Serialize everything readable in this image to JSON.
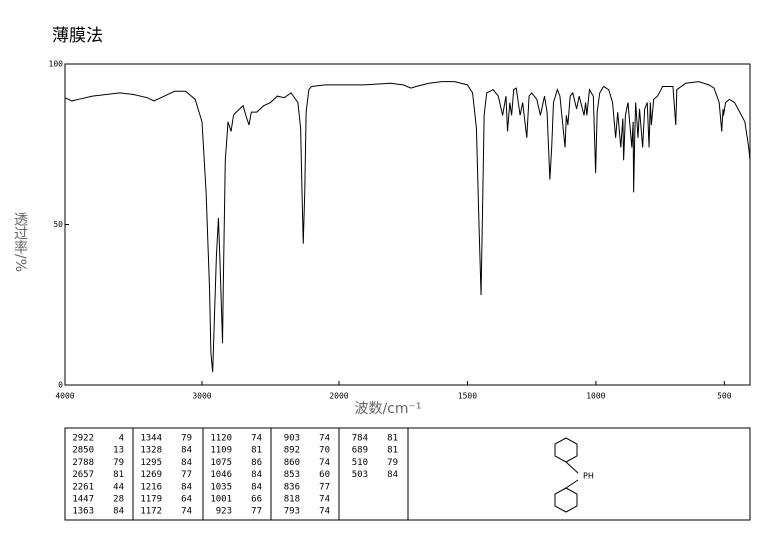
{
  "chart_data": {
    "type": "line",
    "title": "薄膜法",
    "x_label": "波数/cm⁻¹",
    "y_label": "透过率/%",
    "xlim": [
      4000,
      400
    ],
    "x_scale_break": 2000,
    "xticks": [
      4000,
      3000,
      2000,
      1500,
      1000,
      500
    ],
    "ylim": [
      0,
      100
    ],
    "yticks": [
      0,
      50,
      100
    ],
    "color": "#000000",
    "x": [
      4000,
      3950,
      3900,
      3800,
      3700,
      3600,
      3500,
      3400,
      3350,
      3300,
      3200,
      3120,
      3050,
      3000,
      2970,
      2945,
      2935,
      2922,
      2910,
      2895,
      2880,
      2870,
      2855,
      2850,
      2845,
      2830,
      2810,
      2788,
      2770,
      2750,
      2700,
      2680,
      2657,
      2640,
      2600,
      2550,
      2500,
      2450,
      2400,
      2350,
      2300,
      2280,
      2270,
      2261,
      2250,
      2240,
      2220,
      2200,
      2100,
      2000,
      1900,
      1800,
      1750,
      1720,
      1700,
      1650,
      1600,
      1550,
      1500,
      1480,
      1465,
      1455,
      1447,
      1440,
      1435,
      1425,
      1400,
      1380,
      1363,
      1350,
      1344,
      1335,
      1328,
      1320,
      1310,
      1295,
      1285,
      1269,
      1260,
      1250,
      1230,
      1216,
      1200,
      1190,
      1179,
      1172,
      1165,
      1150,
      1140,
      1120,
      1115,
      1109,
      1100,
      1090,
      1075,
      1065,
      1046,
      1040,
      1035,
      1025,
      1010,
      1001,
      995,
      985,
      970,
      950,
      935,
      923,
      915,
      903,
      895,
      892,
      885,
      875,
      860,
      855,
      853,
      848,
      845,
      836,
      830,
      818,
      810,
      800,
      793,
      788,
      784,
      775,
      760,
      740,
      700,
      689,
      685,
      650,
      600,
      560,
      540,
      520,
      510,
      505,
      503,
      495,
      480,
      460,
      440,
      420,
      405,
      400
    ],
    "values": [
      89.5,
      88.5,
      89,
      90,
      90.5,
      91,
      90.5,
      89.5,
      88.5,
      89.5,
      91.5,
      91.5,
      89,
      82,
      60,
      30,
      10,
      4,
      20,
      40,
      52,
      40,
      20,
      13,
      30,
      70,
      82,
      79,
      84,
      85,
      87,
      84,
      81,
      85,
      85,
      87,
      88,
      90,
      89.5,
      91,
      88,
      80,
      60,
      44,
      60,
      85,
      92,
      93,
      93.5,
      93.5,
      93.5,
      94,
      93.5,
      92.5,
      93,
      94,
      94.5,
      94.5,
      93.5,
      91,
      80,
      50,
      28,
      60,
      84,
      91,
      92,
      90,
      84,
      90,
      79,
      88,
      84,
      92,
      92.5,
      84,
      88,
      77,
      90,
      91,
      89,
      84,
      90,
      85,
      64,
      74,
      88,
      92,
      90,
      74,
      84,
      81,
      90,
      91,
      86,
      90,
      84,
      88,
      84,
      92,
      90,
      66,
      85,
      91,
      93,
      92,
      88,
      77,
      85,
      74,
      83,
      70,
      84,
      88,
      74,
      82,
      60,
      80,
      88,
      77,
      86,
      74,
      86,
      88,
      74,
      88,
      81,
      89,
      90,
      93,
      93,
      81,
      92,
      94,
      94.5,
      93.5,
      92.5,
      88,
      79,
      86,
      84,
      88,
      89,
      88,
      85,
      82,
      74,
      70
    ]
  },
  "peak_table": {
    "columns": [
      [
        [
          2922,
          4
        ],
        [
          2850,
          13
        ],
        [
          2788,
          79
        ],
        [
          2657,
          81
        ],
        [
          2261,
          44
        ],
        [
          1447,
          28
        ],
        [
          1363,
          84
        ]
      ],
      [
        [
          1344,
          79
        ],
        [
          1328,
          84
        ],
        [
          1295,
          84
        ],
        [
          1269,
          77
        ],
        [
          1216,
          84
        ],
        [
          1179,
          64
        ],
        [
          1172,
          74
        ]
      ],
      [
        [
          1120,
          74
        ],
        [
          1109,
          81
        ],
        [
          1075,
          86
        ],
        [
          1046,
          84
        ],
        [
          1035,
          84
        ],
        [
          1001,
          66
        ],
        [
          923,
          77
        ]
      ],
      [
        [
          903,
          74
        ],
        [
          892,
          70
        ],
        [
          860,
          74
        ],
        [
          853,
          60
        ],
        [
          836,
          77
        ],
        [
          818,
          74
        ],
        [
          793,
          74
        ]
      ],
      [
        [
          784,
          81
        ],
        [
          689,
          81
        ],
        [
          510,
          79
        ],
        [
          503,
          84
        ]
      ]
    ]
  },
  "structure": {
    "label": "PH"
  }
}
